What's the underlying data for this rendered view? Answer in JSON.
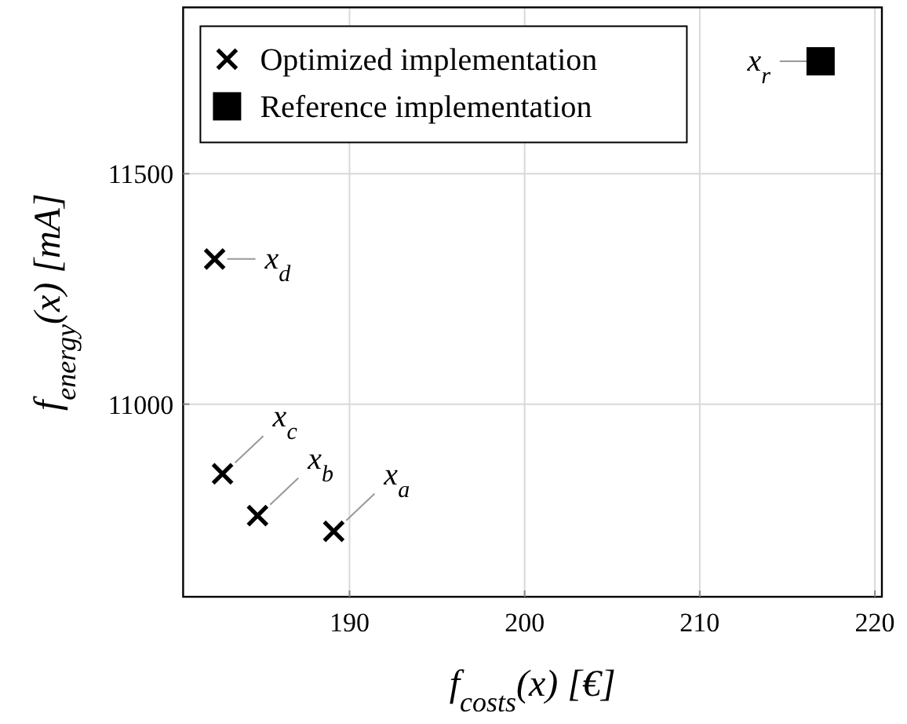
{
  "chart_data": {
    "type": "scatter",
    "xlabel": "f$_{costs}$(x) [€]",
    "ylabel": "f$_{energy}$(x) [mA]",
    "xlim": [
      180.5,
      220.4
    ],
    "xticks": [
      190,
      200,
      210,
      220
    ],
    "ylim": [
      10582,
      11861
    ],
    "yticks": [
      11000,
      11500
    ],
    "grid": true,
    "legend": "top left",
    "series": [
      {
        "name": "Optimized implementation",
        "color": "#000000",
        "marker": "cross",
        "x": [
          189.1,
          184.75,
          182.75,
          182.3
        ],
        "values": [
          10724,
          10758,
          10849,
          11315
        ]
      },
      {
        "name": "Reference implementation",
        "color": "#000000",
        "marker": "square",
        "x": [
          216.9
        ],
        "values": [
          11744
        ]
      }
    ],
    "annotations": [
      {
        "text": "x$_{a}$",
        "x": 189.1,
        "y": 10724
      },
      {
        "text": "x$_{b}$",
        "x": 184.75,
        "y": 10758
      },
      {
        "text": "x$_{c}$",
        "x": 182.75,
        "y": 10849
      },
      {
        "text": "x$_{d}$",
        "x": 182.3,
        "y": 11315
      },
      {
        "text": "x$_{r}$",
        "x": 216.9,
        "y": 11744
      }
    ]
  }
}
